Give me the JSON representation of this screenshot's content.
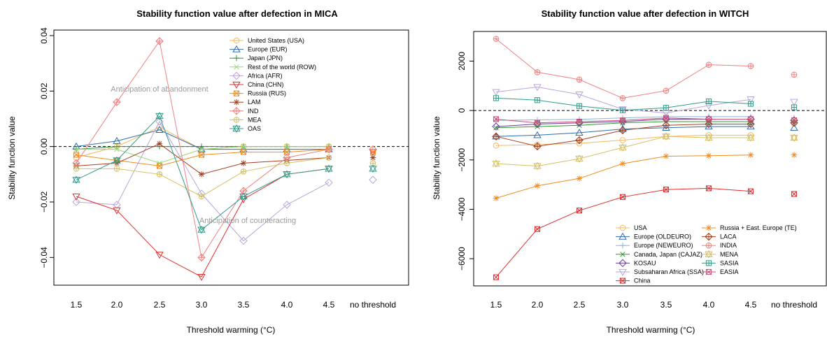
{
  "chart_data": [
    {
      "type": "line",
      "title": "Stability function value after defection in MICA",
      "xlabel": "Threshold warming (°C)",
      "ylabel": "Stability function value",
      "categories": [
        "1.5",
        "2.0",
        "2.5",
        "3.0",
        "3.5",
        "4.0",
        "4.5",
        "no threshold"
      ],
      "ylim": [
        -0.05,
        0.042
      ],
      "yticks": [
        -0.04,
        -0.02,
        0.0,
        0.02,
        0.04
      ],
      "ytick_labels": [
        "−0.04",
        "−0.02",
        "0.00",
        "0.02",
        "0.04"
      ],
      "reference_line": 0,
      "legend_position": "top-right",
      "annotations": [
        "Anticipation of abandonment",
        "Anticipation of counteracting"
      ],
      "series": [
        {
          "name": "United States (USA)",
          "color": "#f5b85c",
          "marker": "circle",
          "values": [
            -0.004,
            0.0,
            0.007,
            -0.001,
            0.0,
            0.0,
            0.0,
            -0.001
          ]
        },
        {
          "name": "Europe (EUR)",
          "color": "#2b6cb0",
          "marker": "triangle",
          "values": [
            0.0,
            0.002,
            0.006,
            -0.001,
            -0.001,
            -0.001,
            -0.001,
            null
          ]
        },
        {
          "name": "Japan (JPN)",
          "color": "#2f9a2f",
          "marker": "plus",
          "values": [
            -0.001,
            0.0,
            0.0,
            0.0,
            0.0,
            0.0,
            0.0,
            null
          ]
        },
        {
          "name": "Rest of the world (ROW)",
          "color": "#9bd67c",
          "marker": "x",
          "values": [
            -0.001,
            -0.001,
            -0.006,
            -0.001,
            0.0,
            0.0,
            0.0,
            null
          ]
        },
        {
          "name": "Africa (AFR)",
          "color": "#b9a4dc",
          "marker": "diamond",
          "values": [
            -0.02,
            -0.021,
            0.009,
            -0.017,
            -0.034,
            -0.021,
            -0.013,
            -0.012
          ]
        },
        {
          "name": "China (CHN)",
          "color": "#e02d2d",
          "marker": "triangle-down",
          "values": [
            -0.018,
            -0.023,
            -0.039,
            -0.047,
            -0.019,
            -0.01,
            -0.008,
            -0.002
          ]
        },
        {
          "name": "Russia (RUS)",
          "color": "#f08a1c",
          "marker": "square-x",
          "values": [
            -0.003,
            -0.005,
            -0.007,
            -0.003,
            -0.002,
            -0.002,
            -0.001,
            -0.002
          ]
        },
        {
          "name": "LAM",
          "color": "#a33f1f",
          "marker": "asterisk",
          "values": [
            -0.007,
            -0.006,
            0.001,
            -0.01,
            -0.006,
            -0.005,
            -0.004,
            -0.004
          ]
        },
        {
          "name": "IND",
          "color": "#f08080",
          "marker": "diamond-plus",
          "values": [
            -0.006,
            0.016,
            0.038,
            -0.04,
            -0.016,
            -0.004,
            -0.001,
            -0.001
          ]
        },
        {
          "name": "MEA",
          "color": "#d4c063",
          "marker": "circle-plus",
          "values": [
            -0.008,
            -0.008,
            -0.01,
            -0.018,
            -0.009,
            -0.006,
            -0.004,
            -0.006
          ]
        },
        {
          "name": "OAS",
          "color": "#2e9c8a",
          "marker": "star",
          "values": [
            -0.012,
            -0.005,
            0.011,
            -0.03,
            -0.018,
            -0.01,
            -0.008,
            -0.008
          ]
        }
      ]
    },
    {
      "type": "line",
      "title": "Stability function value after defection in WITCH",
      "xlabel": "Threshold warming (°C)",
      "ylabel": "Stability function value",
      "categories": [
        "1.5",
        "2.0",
        "2.5",
        "3.0",
        "3.5",
        "4.0",
        "4.5",
        "no threshold"
      ],
      "ylim": [
        -7100,
        3200
      ],
      "yticks": [
        -6000,
        -4000,
        -2000,
        0,
        2000
      ],
      "ytick_labels": [
        "−6000",
        "−4000",
        "−2000",
        "0",
        "2000"
      ],
      "reference_line": 0,
      "legend_position": "bottom-right",
      "series": [
        {
          "name": "USA",
          "color": "#f5b85c",
          "marker": "circle",
          "values": [
            -1420,
            -1380,
            -1330,
            -1200,
            -1050,
            -1000,
            -1000,
            -1100
          ]
        },
        {
          "name": "Europe (OLDEURO)",
          "color": "#2b6cb0",
          "marker": "triangle",
          "values": [
            -1050,
            -1000,
            -900,
            -750,
            -700,
            -650,
            -650,
            -700
          ]
        },
        {
          "name": "Europe (NEWEURO)",
          "color": "#8ab4de",
          "marker": "plus",
          "values": [
            -400,
            -380,
            -360,
            -300,
            -250,
            -250,
            -250,
            -300
          ]
        },
        {
          "name": "Canada, Japan (CAJAZ)",
          "color": "#2f9a2f",
          "marker": "x",
          "values": [
            -700,
            -650,
            -600,
            -500,
            -450,
            -450,
            -450,
            -500
          ]
        },
        {
          "name": "KOSAU",
          "color": "#6a3d9a",
          "marker": "diamond",
          "values": [
            -650,
            -550,
            -500,
            -450,
            -350,
            -350,
            -350,
            -400
          ]
        },
        {
          "name": "Subsaharan Africa (SSA)",
          "color": "#b9a4dc",
          "marker": "triangle-down",
          "values": [
            750,
            950,
            650,
            50,
            -100,
            200,
            450,
            350
          ]
        },
        {
          "name": "China",
          "color": "#e02d2d",
          "marker": "square-x",
          "values": [
            -6750,
            -4800,
            -4050,
            -3500,
            -3200,
            -3150,
            -3270,
            -3380
          ]
        },
        {
          "name": "Russia + East. Europe (TE)",
          "color": "#f08a1c",
          "marker": "asterisk",
          "values": [
            -3550,
            -3050,
            -2750,
            -2150,
            -1850,
            -1830,
            -1800,
            -1800
          ]
        },
        {
          "name": "LACA",
          "color": "#a33f1f",
          "marker": "diamond-plus",
          "values": [
            -1050,
            -1450,
            -1200,
            -800,
            -600,
            -550,
            -550,
            -500
          ]
        },
        {
          "name": "INDIA",
          "color": "#f08080",
          "marker": "circle-plus",
          "values": [
            2900,
            1550,
            1250,
            500,
            800,
            1850,
            1800,
            1450
          ]
        },
        {
          "name": "MENA",
          "color": "#d4c063",
          "marker": "star",
          "values": [
            -2150,
            -2250,
            -1950,
            -1500,
            -1050,
            -1100,
            -1100,
            -1100
          ]
        },
        {
          "name": "SASIA",
          "color": "#2e9c8a",
          "marker": "square-plus",
          "values": [
            500,
            420,
            180,
            10,
            110,
            370,
            270,
            130
          ]
        },
        {
          "name": "EASIA",
          "color": "#c94f74",
          "marker": "square-x",
          "values": [
            -350,
            -500,
            -450,
            -400,
            -300,
            -350,
            -350,
            -400
          ]
        }
      ]
    }
  ]
}
